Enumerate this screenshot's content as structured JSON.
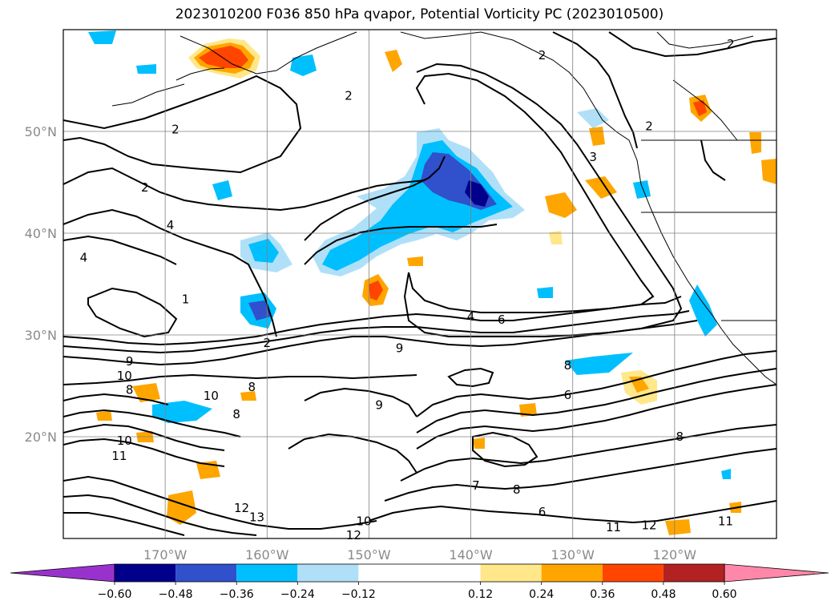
{
  "title": "2023010200 F036 850 hPa qvapor, Potential Vorticity PC (2023010500)",
  "map": {
    "lon_range": [
      -180,
      -110
    ],
    "lat_range": [
      10,
      60
    ],
    "lat_ticks": [
      {
        "value": 20,
        "label": "20°N"
      },
      {
        "value": 30,
        "label": "30°N"
      },
      {
        "value": 40,
        "label": "40°N"
      },
      {
        "value": 50,
        "label": "50°N"
      }
    ],
    "lon_ticks": [
      {
        "value": -170,
        "label": "170°W"
      },
      {
        "value": -160,
        "label": "160°W"
      },
      {
        "value": -150,
        "label": "150°W"
      },
      {
        "value": -140,
        "label": "140°W"
      },
      {
        "value": -130,
        "label": "130°W"
      },
      {
        "value": -120,
        "label": "120°W"
      }
    ],
    "grid": true
  },
  "chart_data": {
    "type": "heatmap",
    "title": "2023010200 F036 850 hPa qvapor, Potential Vorticity PC (2023010500)",
    "colorbar": {
      "boundaries": [
        -0.72,
        -0.6,
        -0.48,
        -0.36,
        -0.24,
        -0.12,
        0.12,
        0.24,
        0.36,
        0.48,
        0.6,
        0.72
      ],
      "tick_labels": [
        "−0.60",
        "−0.48",
        "−0.36",
        "−0.24",
        "−0.12",
        "0.12",
        "0.24",
        "0.36",
        "0.48",
        "0.60"
      ],
      "tick_values": [
        -0.6,
        -0.48,
        -0.36,
        -0.24,
        -0.12,
        0.12,
        0.24,
        0.36,
        0.48,
        0.6
      ],
      "colors": [
        "#9932cc",
        "#00008b",
        "#3050cc",
        "#00bfff",
        "#b0e0f8",
        "#ffffff",
        "#ffe78a",
        "#ffa500",
        "#ff4500",
        "#b22222",
        "#ff88aa"
      ],
      "extend": "both"
    },
    "contour_labels": [
      {
        "text": "2",
        "lon": -169,
        "lat": 50.2
      },
      {
        "text": "2",
        "lon": -152,
        "lat": 53.5
      },
      {
        "text": "2",
        "lon": -133,
        "lat": 57.5
      },
      {
        "text": "2",
        "lon": -114.5,
        "lat": 58.6
      },
      {
        "text": "2",
        "lon": -122.5,
        "lat": 50.5
      },
      {
        "text": "2",
        "lon": -172,
        "lat": 44.5
      },
      {
        "text": "4",
        "lon": -169.5,
        "lat": 40.8
      },
      {
        "text": "3",
        "lon": -128,
        "lat": 47.5
      },
      {
        "text": "1",
        "lon": -168,
        "lat": 33.5
      },
      {
        "text": "4",
        "lon": -178,
        "lat": 37.6
      },
      {
        "text": "2",
        "lon": -160,
        "lat": 29.2
      },
      {
        "text": "4",
        "lon": -140,
        "lat": 31.8
      },
      {
        "text": "6",
        "lon": -137,
        "lat": 31.5
      },
      {
        "text": "9",
        "lon": -173.5,
        "lat": 27.4
      },
      {
        "text": "10",
        "lon": -174,
        "lat": 26
      },
      {
        "text": "8",
        "lon": -173.5,
        "lat": 24.6
      },
      {
        "text": "10",
        "lon": -165.5,
        "lat": 24
      },
      {
        "text": "9",
        "lon": -147,
        "lat": 28.7
      },
      {
        "text": "8",
        "lon": -130.5,
        "lat": 27
      },
      {
        "text": "8",
        "lon": -161.5,
        "lat": 24.9
      },
      {
        "text": "9",
        "lon": -149,
        "lat": 23.1
      },
      {
        "text": "8",
        "lon": -163,
        "lat": 22.2
      },
      {
        "text": "6",
        "lon": -130.5,
        "lat": 24.1
      },
      {
        "text": "8",
        "lon": -119.5,
        "lat": 20
      },
      {
        "text": "10",
        "lon": -174,
        "lat": 19.6
      },
      {
        "text": "11",
        "lon": -174.5,
        "lat": 18.1
      },
      {
        "text": "12",
        "lon": -162.5,
        "lat": 13
      },
      {
        "text": "13",
        "lon": -161,
        "lat": 12.1
      },
      {
        "text": "10",
        "lon": -150.5,
        "lat": 11.7
      },
      {
        "text": "12",
        "lon": -151.5,
        "lat": 10.3
      },
      {
        "text": "11",
        "lon": -126,
        "lat": 11.1
      },
      {
        "text": "12",
        "lon": -122.5,
        "lat": 11.3
      },
      {
        "text": "11",
        "lon": -115,
        "lat": 11.7
      },
      {
        "text": "6",
        "lon": -133,
        "lat": 12.6
      },
      {
        "text": "7",
        "lon": -139.5,
        "lat": 15.2
      },
      {
        "text": "8",
        "lon": -135.5,
        "lat": 14.8
      }
    ]
  },
  "colorbar_ticks": [
    "−0.60",
    "−0.48",
    "−0.36",
    "−0.24",
    "−0.12",
    "0.12",
    "0.24",
    "0.36",
    "0.48",
    "0.60"
  ]
}
